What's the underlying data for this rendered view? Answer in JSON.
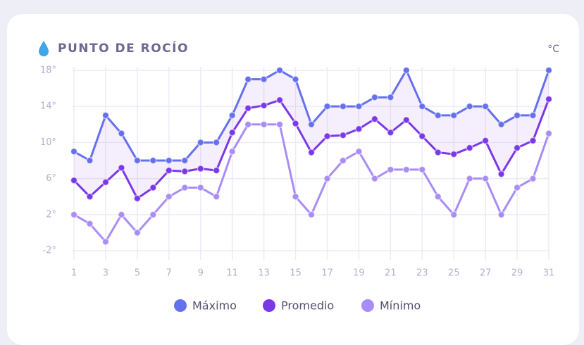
{
  "chart_data": {
    "type": "line",
    "title": "PUNTO DE ROCÍO",
    "unit": "°C",
    "x": [
      1,
      2,
      3,
      4,
      5,
      6,
      7,
      8,
      9,
      10,
      11,
      12,
      13,
      14,
      15,
      16,
      17,
      18,
      19,
      20,
      21,
      22,
      23,
      24,
      25,
      26,
      27,
      28,
      29,
      30,
      31
    ],
    "xlim": [
      1,
      31
    ],
    "xticks": [
      1,
      3,
      5,
      7,
      9,
      11,
      13,
      15,
      17,
      19,
      21,
      23,
      25,
      27,
      29,
      31
    ],
    "ylim": [
      -3,
      19
    ],
    "yticks": [
      {
        "value": -2,
        "label": "-2°"
      },
      {
        "value": 2,
        "label": "2°"
      },
      {
        "value": 6,
        "label": "6°"
      },
      {
        "value": 10,
        "label": "10°"
      },
      {
        "value": 14,
        "label": "14°"
      },
      {
        "value": 18,
        "label": "18°"
      }
    ],
    "grid": true,
    "legend": "bottom",
    "series": [
      {
        "name": "Máximo",
        "color": "#6570ee",
        "values": [
          9,
          8,
          13,
          11,
          8,
          8,
          8,
          8,
          10,
          10,
          13,
          17,
          17,
          18,
          17,
          12,
          14,
          14,
          14,
          15,
          15,
          18,
          14,
          13,
          13,
          14,
          14,
          12,
          13,
          13,
          18
        ]
      },
      {
        "name": "Promedio",
        "color": "#7b38e8",
        "values": [
          5.8,
          4,
          5.6,
          7.2,
          3.8,
          5,
          6.9,
          6.8,
          7.1,
          6.9,
          11.1,
          13.8,
          14.1,
          14.7,
          12.1,
          8.9,
          10.7,
          10.8,
          11.5,
          12.6,
          11.1,
          12.5,
          10.7,
          8.9,
          8.7,
          9.4,
          10.2,
          6.5,
          9.4,
          10.2,
          14.8
        ]
      },
      {
        "name": "Mínimo",
        "color": "#a98cf6",
        "values": [
          2,
          1,
          -1,
          2,
          0,
          2,
          4,
          5,
          5,
          4,
          9,
          12,
          12,
          12,
          4,
          2,
          6,
          8,
          9,
          6,
          7,
          7,
          7,
          4,
          2,
          6,
          6,
          2,
          5,
          6,
          11
        ]
      }
    ]
  }
}
